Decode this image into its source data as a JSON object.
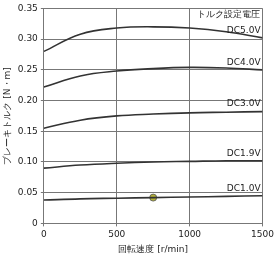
{
  "chart_data": {
    "type": "line",
    "x_label": "回転速度 [r/min]",
    "y_label": "ブレーキトルク [N・m]",
    "annotations": [
      "トルク設定電圧"
    ],
    "xlim": [
      0,
      1500
    ],
    "xticks": [
      0,
      500,
      1000,
      1500
    ],
    "ylim": [
      0,
      0.35
    ],
    "yticks": [
      0,
      0.05,
      {
        "value": 0.1,
        "label": "0.10"
      },
      0.15,
      {
        "value": 0.2,
        "label": "0.20"
      },
      0.25,
      {
        "value": 0.3,
        "label": "0.30"
      },
      0.35
    ],
    "grid": true,
    "x": [
      0,
      250,
      500,
      750,
      1000,
      1250,
      1500
    ],
    "series": [
      {
        "name": "DC5.0V",
        "color": "#333333",
        "values": [
          0.28,
          0.308,
          0.318,
          0.32,
          0.318,
          0.312,
          0.302
        ]
      },
      {
        "name": "DC4.0V",
        "color": "#333333",
        "values": [
          0.222,
          0.24,
          0.248,
          0.252,
          0.254,
          0.253,
          0.25
        ]
      },
      {
        "name": "DC3.0V",
        "color": "#333333",
        "values": [
          0.155,
          0.168,
          0.175,
          0.178,
          0.18,
          0.181,
          0.182
        ]
      },
      {
        "name": "DC1.9V",
        "color": "#333333",
        "values": [
          0.09,
          0.095,
          0.098,
          0.1,
          0.101,
          0.102,
          0.102
        ]
      },
      {
        "name": "DC1.0V",
        "color": "#333333",
        "values": [
          0.038,
          0.04,
          0.041,
          0.042,
          0.043,
          0.044,
          0.045
        ]
      }
    ],
    "markers": [
      {
        "x": 750,
        "y": 0.042,
        "color": "#b5b23a"
      }
    ]
  }
}
